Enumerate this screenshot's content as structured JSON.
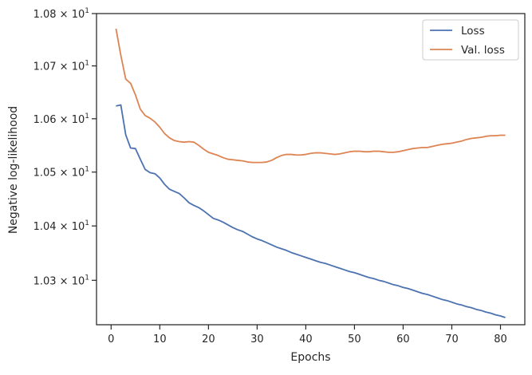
{
  "chart_data": {
    "type": "line",
    "title": "",
    "xlabel": "Epochs",
    "ylabel": "Negative log-likelihood",
    "yscale": "log",
    "xlim": [
      -3,
      85
    ],
    "ylim": [
      10.219,
      10.8
    ],
    "grid": false,
    "legend_position": "top-right",
    "x_ticks": [
      0,
      10,
      20,
      30,
      40,
      50,
      60,
      70,
      80
    ],
    "x_tick_labels": [
      "0",
      "10",
      "20",
      "30",
      "40",
      "50",
      "60",
      "70",
      "80"
    ],
    "y_ticks": [
      10.3,
      10.4,
      10.5,
      10.6,
      10.7,
      10.8
    ],
    "y_tick_labels": [
      {
        "base": "1.03",
        "mantissa": "1.03 × 10",
        "exp": "1"
      },
      {
        "base": "1.04",
        "mantissa": "1.04 × 10",
        "exp": "1"
      },
      {
        "base": "1.05",
        "mantissa": "1.05 × 10",
        "exp": "1"
      },
      {
        "base": "1.06",
        "mantissa": "1.06 × 10",
        "exp": "1"
      },
      {
        "base": "1.07",
        "mantissa": "1.07 × 10",
        "exp": "1"
      },
      {
        "base": "1.08",
        "mantissa": "1.08 × 10",
        "exp": "1"
      }
    ],
    "x": [
      1,
      2,
      3,
      4,
      5,
      6,
      7,
      8,
      9,
      10,
      11,
      12,
      13,
      14,
      15,
      16,
      17,
      18,
      19,
      20,
      21,
      22,
      23,
      24,
      25,
      26,
      27,
      28,
      29,
      30,
      31,
      32,
      33,
      34,
      35,
      36,
      37,
      38,
      39,
      40,
      41,
      42,
      43,
      44,
      45,
      46,
      47,
      48,
      49,
      50,
      51,
      52,
      53,
      54,
      55,
      56,
      57,
      58,
      59,
      60,
      61,
      62,
      63,
      64,
      65,
      66,
      67,
      68,
      69,
      70,
      71,
      72,
      73,
      74,
      75,
      76,
      77,
      78,
      79,
      80,
      81
    ],
    "series": [
      {
        "name": "Loss",
        "color": "#4c72b0",
        "values": [
          10.624,
          10.626,
          10.57,
          10.545,
          10.544,
          10.524,
          10.505,
          10.499,
          10.497,
          10.489,
          10.477,
          10.468,
          10.464,
          10.46,
          10.452,
          10.443,
          10.438,
          10.434,
          10.428,
          10.421,
          10.414,
          10.411,
          10.407,
          10.402,
          10.397,
          10.393,
          10.39,
          10.385,
          10.38,
          10.376,
          10.373,
          10.369,
          10.365,
          10.361,
          10.358,
          10.355,
          10.351,
          10.348,
          10.345,
          10.342,
          10.339,
          10.336,
          10.333,
          10.331,
          10.328,
          10.325,
          10.322,
          10.319,
          10.316,
          10.314,
          10.311,
          10.308,
          10.305,
          10.303,
          10.3,
          10.298,
          10.295,
          10.292,
          10.29,
          10.287,
          10.285,
          10.282,
          10.279,
          10.276,
          10.274,
          10.271,
          10.268,
          10.265,
          10.263,
          10.26,
          10.257,
          10.255,
          10.252,
          10.25,
          10.247,
          10.245,
          10.242,
          10.24,
          10.237,
          10.235,
          10.232
        ]
      },
      {
        "name": "Val. loss",
        "color": "#dd8452",
        "values": [
          10.771,
          10.72,
          10.675,
          10.667,
          10.645,
          10.618,
          10.606,
          10.601,
          10.594,
          10.584,
          10.572,
          10.564,
          10.559,
          10.557,
          10.556,
          10.557,
          10.556,
          10.55,
          10.543,
          10.537,
          10.534,
          10.531,
          10.527,
          10.524,
          10.523,
          10.522,
          10.521,
          10.519,
          10.518,
          10.518,
          10.518,
          10.519,
          10.522,
          10.527,
          10.531,
          10.533,
          10.533,
          10.532,
          10.532,
          10.533,
          10.535,
          10.536,
          10.536,
          10.535,
          10.534,
          10.533,
          10.534,
          10.536,
          10.538,
          10.539,
          10.539,
          10.538,
          10.538,
          10.539,
          10.539,
          10.538,
          10.537,
          10.537,
          10.538,
          10.54,
          10.542,
          10.544,
          10.545,
          10.546,
          10.546,
          10.548,
          10.55,
          10.552,
          10.553,
          10.554,
          10.556,
          10.558,
          10.561,
          10.563,
          10.564,
          10.565,
          10.567,
          10.568,
          10.568,
          10.569,
          10.569
        ]
      }
    ]
  }
}
